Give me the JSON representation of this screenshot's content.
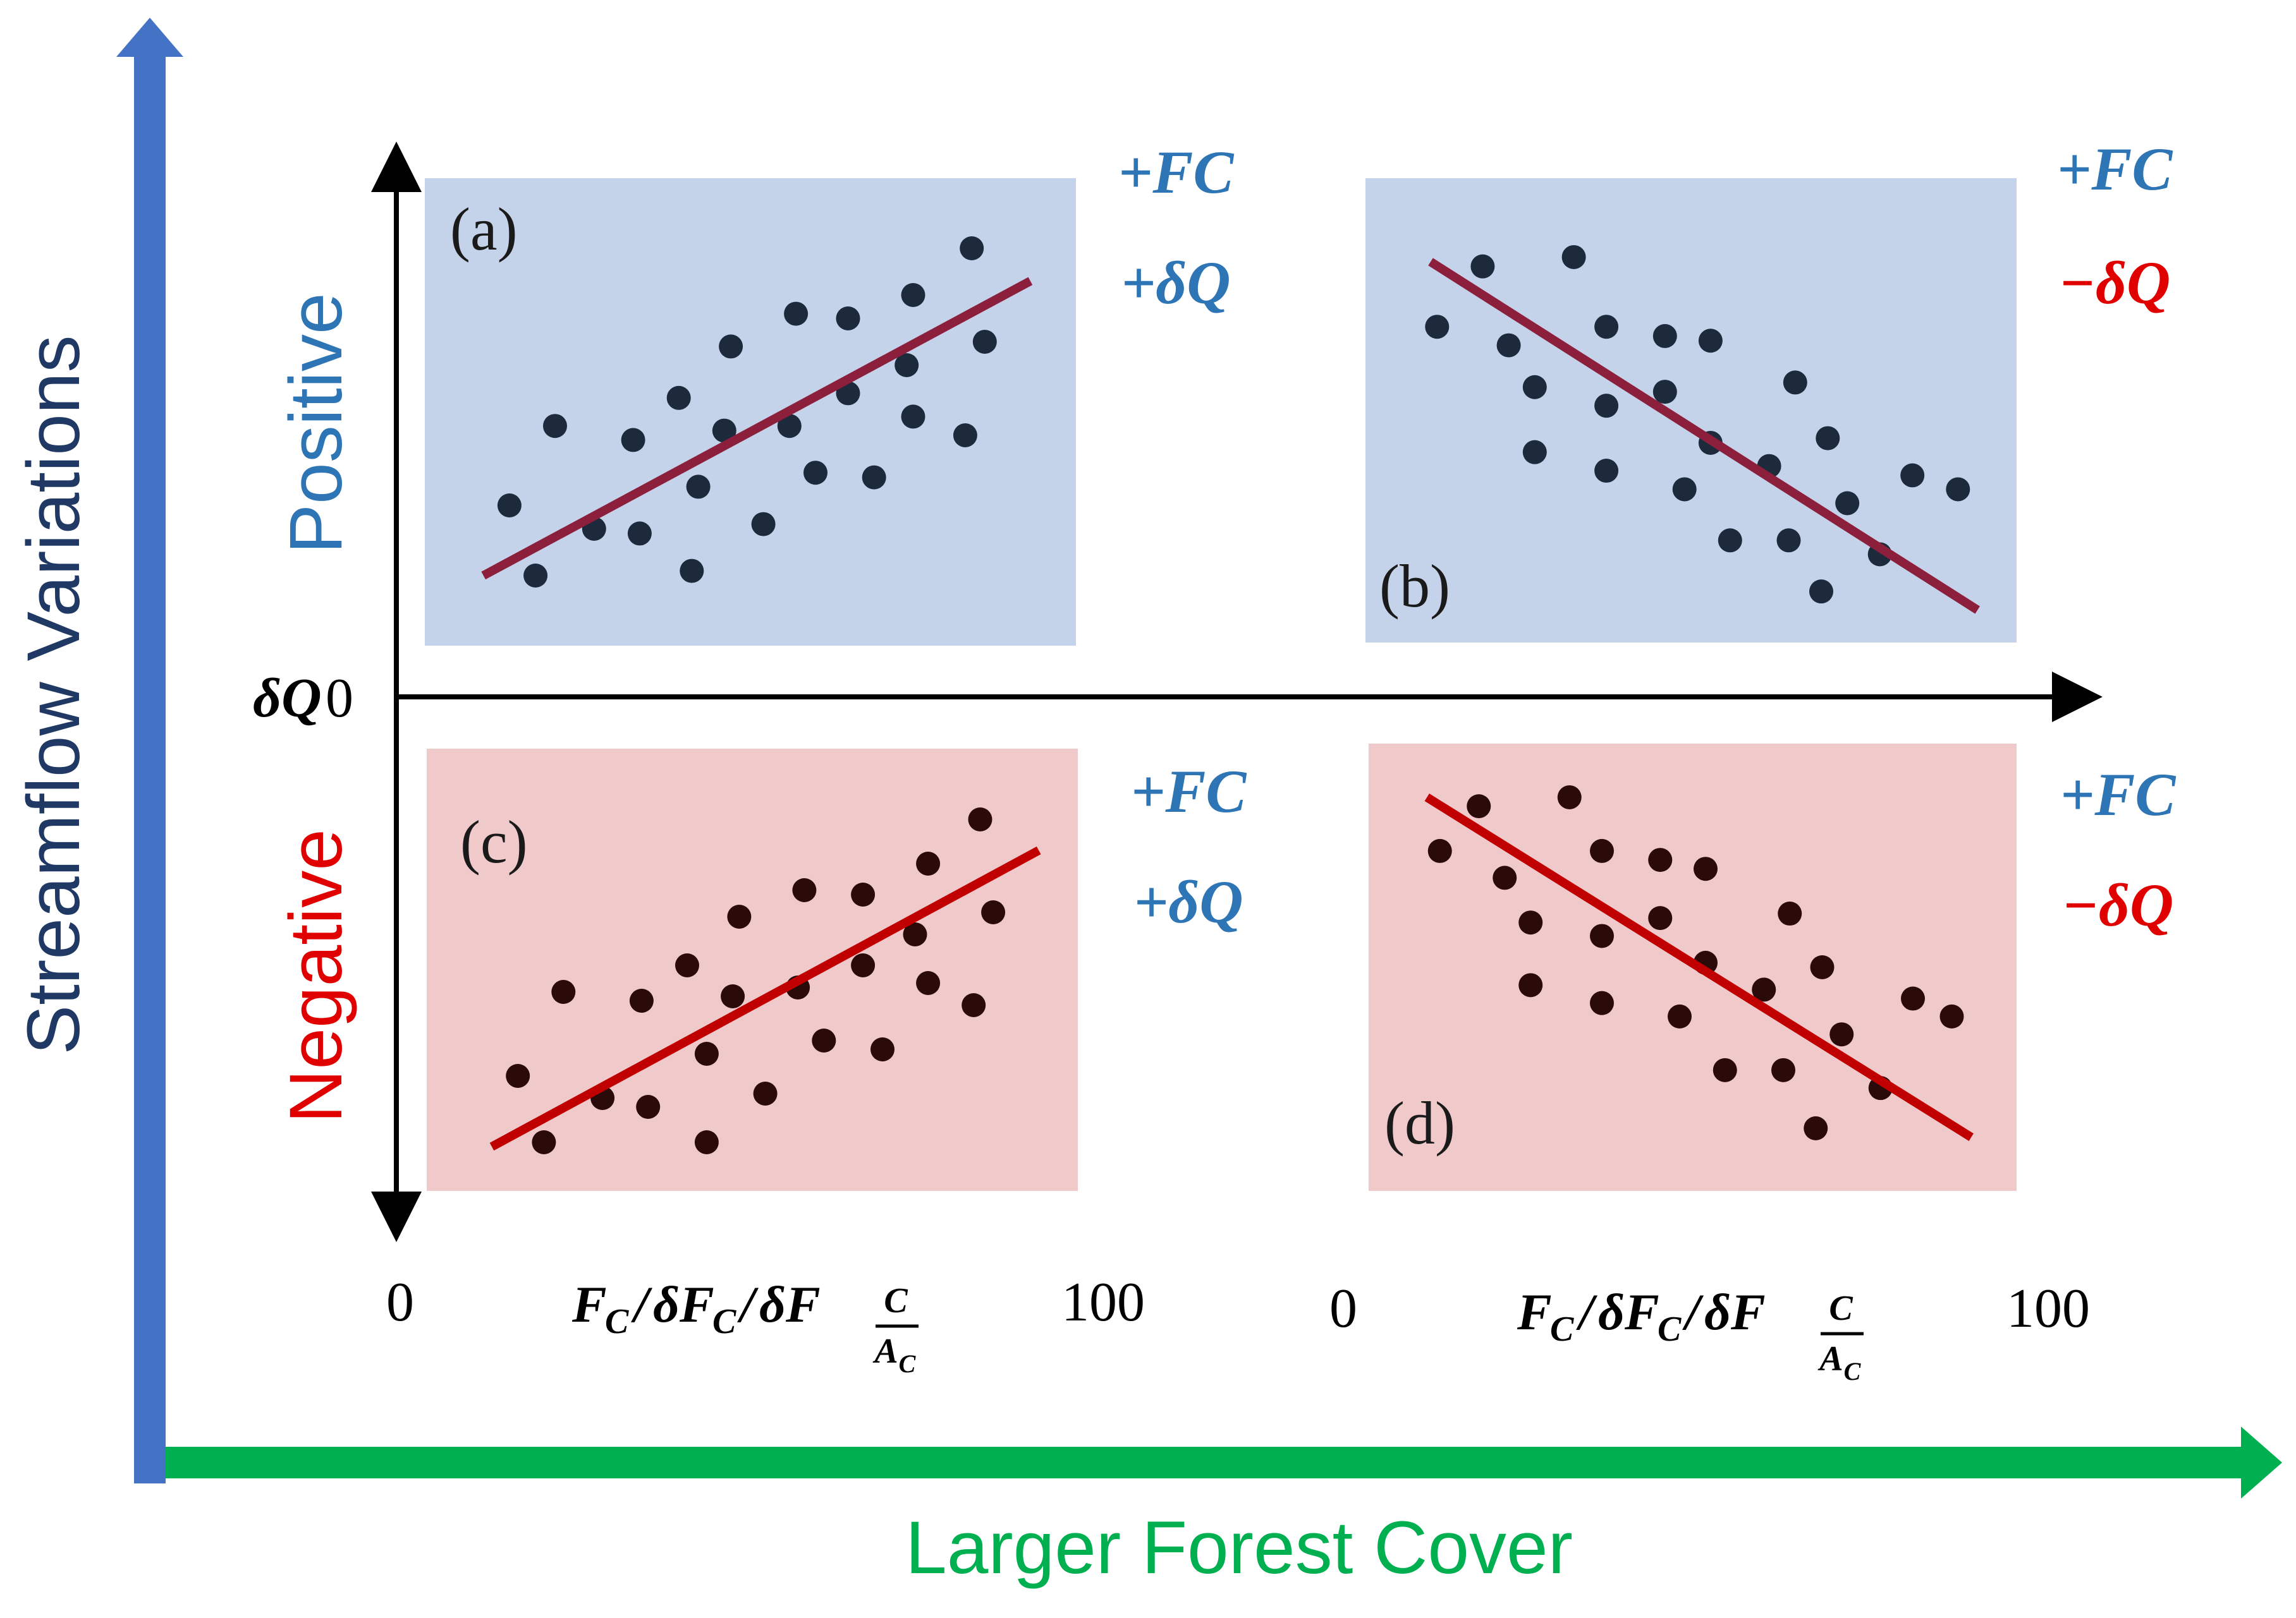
{
  "axes": {
    "y_label": "Streamflow Variations",
    "x_label": "Larger Forest Cover",
    "dq_label": "δQ",
    "zero": "0",
    "hundred": "100",
    "positive_label": "Positive",
    "negative_label": "Negative",
    "x_axis_label": {
      "main": "F",
      "sub": "C",
      "slash": "/",
      "delta": "δF",
      "frac_top": "C",
      "frac_bottom": "A",
      "frac_bottom_sub": "C"
    }
  },
  "colors": {
    "blue_arrow": "#4472c4",
    "green_arrow": "#00b050",
    "y_label_color": "#1f3864",
    "blue_text": "#2e75b6",
    "red_text": "#e00000",
    "blue_panel": "#c5d3ea",
    "red_panel": "#f0caca",
    "line_dark_red": "#8b1f3c",
    "line_red": "#c00000",
    "dot_blue_panel": "#1c2a3c",
    "dot_red_panel": "#2b0a0a"
  },
  "panels": [
    {
      "id": "a",
      "label": "(a)",
      "fc": "+FC",
      "dq": "+δQ",
      "dq_color": "blue",
      "points": [
        [
          0.13,
          0.3
        ],
        [
          0.17,
          0.15
        ],
        [
          0.2,
          0.47
        ],
        [
          0.26,
          0.25
        ],
        [
          0.33,
          0.24
        ],
        [
          0.32,
          0.44
        ],
        [
          0.39,
          0.53
        ],
        [
          0.41,
          0.16
        ],
        [
          0.42,
          0.34
        ],
        [
          0.46,
          0.46
        ],
        [
          0.47,
          0.64
        ],
        [
          0.52,
          0.26
        ],
        [
          0.56,
          0.47
        ],
        [
          0.57,
          0.71
        ],
        [
          0.6,
          0.37
        ],
        [
          0.65,
          0.7
        ],
        [
          0.65,
          0.54
        ],
        [
          0.69,
          0.36
        ],
        [
          0.74,
          0.6
        ],
        [
          0.75,
          0.75
        ],
        [
          0.75,
          0.49
        ],
        [
          0.83,
          0.45
        ],
        [
          0.84,
          0.85
        ],
        [
          0.86,
          0.65
        ]
      ],
      "trend": [
        [
          0.09,
          0.15
        ],
        [
          0.93,
          0.78
        ]
      ]
    },
    {
      "id": "b",
      "label": "(b)",
      "fc": "+FC",
      "dq": "−δQ",
      "dq_color": "red",
      "points": [
        [
          0.11,
          0.68
        ],
        [
          0.18,
          0.81
        ],
        [
          0.22,
          0.64
        ],
        [
          0.26,
          0.55
        ],
        [
          0.26,
          0.41
        ],
        [
          0.32,
          0.83
        ],
        [
          0.37,
          0.68
        ],
        [
          0.37,
          0.51
        ],
        [
          0.37,
          0.37
        ],
        [
          0.46,
          0.66
        ],
        [
          0.46,
          0.54
        ],
        [
          0.49,
          0.33
        ],
        [
          0.53,
          0.65
        ],
        [
          0.53,
          0.43
        ],
        [
          0.56,
          0.22
        ],
        [
          0.62,
          0.38
        ],
        [
          0.65,
          0.22
        ],
        [
          0.66,
          0.56
        ],
        [
          0.71,
          0.44
        ],
        [
          0.7,
          0.11
        ],
        [
          0.74,
          0.3
        ],
        [
          0.79,
          0.19
        ],
        [
          0.84,
          0.36
        ],
        [
          0.91,
          0.33
        ]
      ],
      "trend": [
        [
          0.1,
          0.82
        ],
        [
          0.94,
          0.07
        ]
      ]
    },
    {
      "id": "c",
      "label": "(c)",
      "fc": "+FC",
      "dq": "+δQ",
      "dq_color": "blue",
      "points": [
        [
          0.14,
          0.26
        ],
        [
          0.18,
          0.11
        ],
        [
          0.21,
          0.45
        ],
        [
          0.27,
          0.21
        ],
        [
          0.34,
          0.19
        ],
        [
          0.33,
          0.43
        ],
        [
          0.4,
          0.51
        ],
        [
          0.43,
          0.11
        ],
        [
          0.43,
          0.31
        ],
        [
          0.47,
          0.44
        ],
        [
          0.48,
          0.62
        ],
        [
          0.52,
          0.22
        ],
        [
          0.57,
          0.46
        ],
        [
          0.58,
          0.68
        ],
        [
          0.61,
          0.34
        ],
        [
          0.67,
          0.67
        ],
        [
          0.67,
          0.51
        ],
        [
          0.7,
          0.32
        ],
        [
          0.75,
          0.58
        ],
        [
          0.77,
          0.74
        ],
        [
          0.77,
          0.47
        ],
        [
          0.84,
          0.42
        ],
        [
          0.85,
          0.84
        ],
        [
          0.87,
          0.63
        ]
      ],
      "trend": [
        [
          0.1,
          0.1
        ],
        [
          0.94,
          0.77
        ]
      ]
    },
    {
      "id": "d",
      "label": "(d)",
      "fc": "+FC",
      "dq": "−δQ",
      "dq_color": "red",
      "points": [
        [
          0.11,
          0.76
        ],
        [
          0.17,
          0.86
        ],
        [
          0.21,
          0.7
        ],
        [
          0.25,
          0.6
        ],
        [
          0.25,
          0.46
        ],
        [
          0.31,
          0.88
        ],
        [
          0.36,
          0.76
        ],
        [
          0.36,
          0.57
        ],
        [
          0.36,
          0.42
        ],
        [
          0.45,
          0.74
        ],
        [
          0.45,
          0.61
        ],
        [
          0.48,
          0.39
        ],
        [
          0.52,
          0.72
        ],
        [
          0.52,
          0.51
        ],
        [
          0.55,
          0.27
        ],
        [
          0.61,
          0.45
        ],
        [
          0.64,
          0.27
        ],
        [
          0.65,
          0.62
        ],
        [
          0.7,
          0.5
        ],
        [
          0.69,
          0.14
        ],
        [
          0.73,
          0.35
        ],
        [
          0.79,
          0.23
        ],
        [
          0.84,
          0.43
        ],
        [
          0.9,
          0.39
        ]
      ],
      "trend": [
        [
          0.09,
          0.88
        ],
        [
          0.93,
          0.12
        ]
      ]
    }
  ]
}
